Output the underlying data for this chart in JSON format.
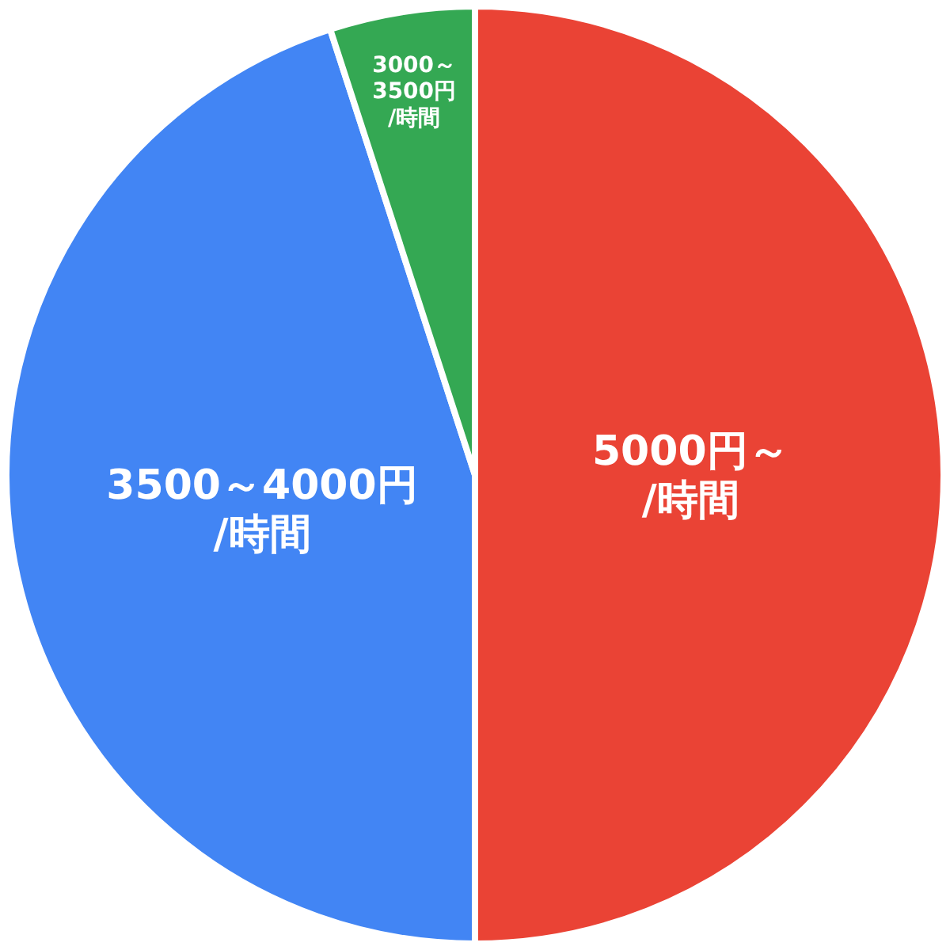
{
  "chart_data": {
    "type": "pie",
    "categories": [
      "5000円～/時間",
      "3500～4000円/時間",
      "3000～3500円/時間"
    ],
    "values": [
      50,
      45,
      5
    ],
    "colors": [
      "#ea4335",
      "#4285f4",
      "#34a853"
    ]
  }
}
